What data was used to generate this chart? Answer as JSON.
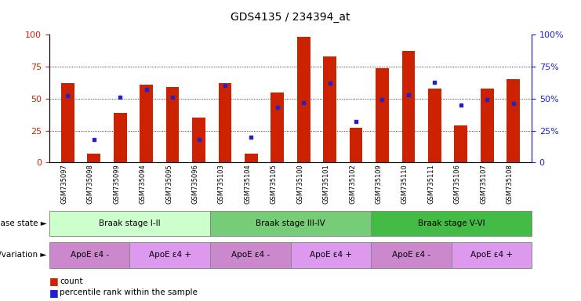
{
  "title": "GDS4135 / 234394_at",
  "samples": [
    "GSM735097",
    "GSM735098",
    "GSM735099",
    "GSM735094",
    "GSM735095",
    "GSM735096",
    "GSM735103",
    "GSM735104",
    "GSM735105",
    "GSM735100",
    "GSM735101",
    "GSM735102",
    "GSM735109",
    "GSM735110",
    "GSM735111",
    "GSM735106",
    "GSM735107",
    "GSM735108"
  ],
  "counts": [
    62,
    7,
    39,
    61,
    59,
    35,
    62,
    7,
    55,
    98,
    83,
    27,
    74,
    87,
    58,
    29,
    58,
    65
  ],
  "percentile": [
    52,
    18,
    51,
    57,
    51,
    18,
    60,
    20,
    43,
    47,
    62,
    32,
    49,
    53,
    63,
    45,
    49,
    46
  ],
  "bar_color": "#cc2200",
  "dot_color": "#2222cc",
  "ylim_left": [
    0,
    100
  ],
  "ylim_right": [
    0,
    100
  ],
  "yticks_left": [
    0,
    25,
    50,
    75,
    100
  ],
  "yticks_right": [
    0,
    25,
    50,
    75,
    100
  ],
  "disease_groups": [
    {
      "label": "Braak stage I-II",
      "start": 0,
      "end": 5,
      "color": "#ccffcc"
    },
    {
      "label": "Braak stage III-IV",
      "start": 6,
      "end": 11,
      "color": "#77cc77"
    },
    {
      "label": "Braak stage V-VI",
      "start": 12,
      "end": 17,
      "color": "#44bb44"
    }
  ],
  "genotype_groups": [
    {
      "label": "ApoE ε4 -",
      "start": 0,
      "end": 2,
      "color": "#cc88cc"
    },
    {
      "label": "ApoE ε4 +",
      "start": 3,
      "end": 5,
      "color": "#dd99ee"
    },
    {
      "label": "ApoE ε4 -",
      "start": 6,
      "end": 8,
      "color": "#cc88cc"
    },
    {
      "label": "ApoE ε4 +",
      "start": 9,
      "end": 11,
      "color": "#dd99ee"
    },
    {
      "label": "ApoE ε4 -",
      "start": 12,
      "end": 14,
      "color": "#cc88cc"
    },
    {
      "label": "ApoE ε4 +",
      "start": 15,
      "end": 17,
      "color": "#dd99ee"
    }
  ],
  "label_disease_state": "disease state",
  "label_genotype": "genotype/variation",
  "legend_count": "count",
  "legend_percentile": "percentile rank within the sample",
  "background_color": "#ffffff",
  "tick_label_color_left": "#cc2200",
  "tick_label_color_right": "#2222cc",
  "bar_width": 0.5
}
